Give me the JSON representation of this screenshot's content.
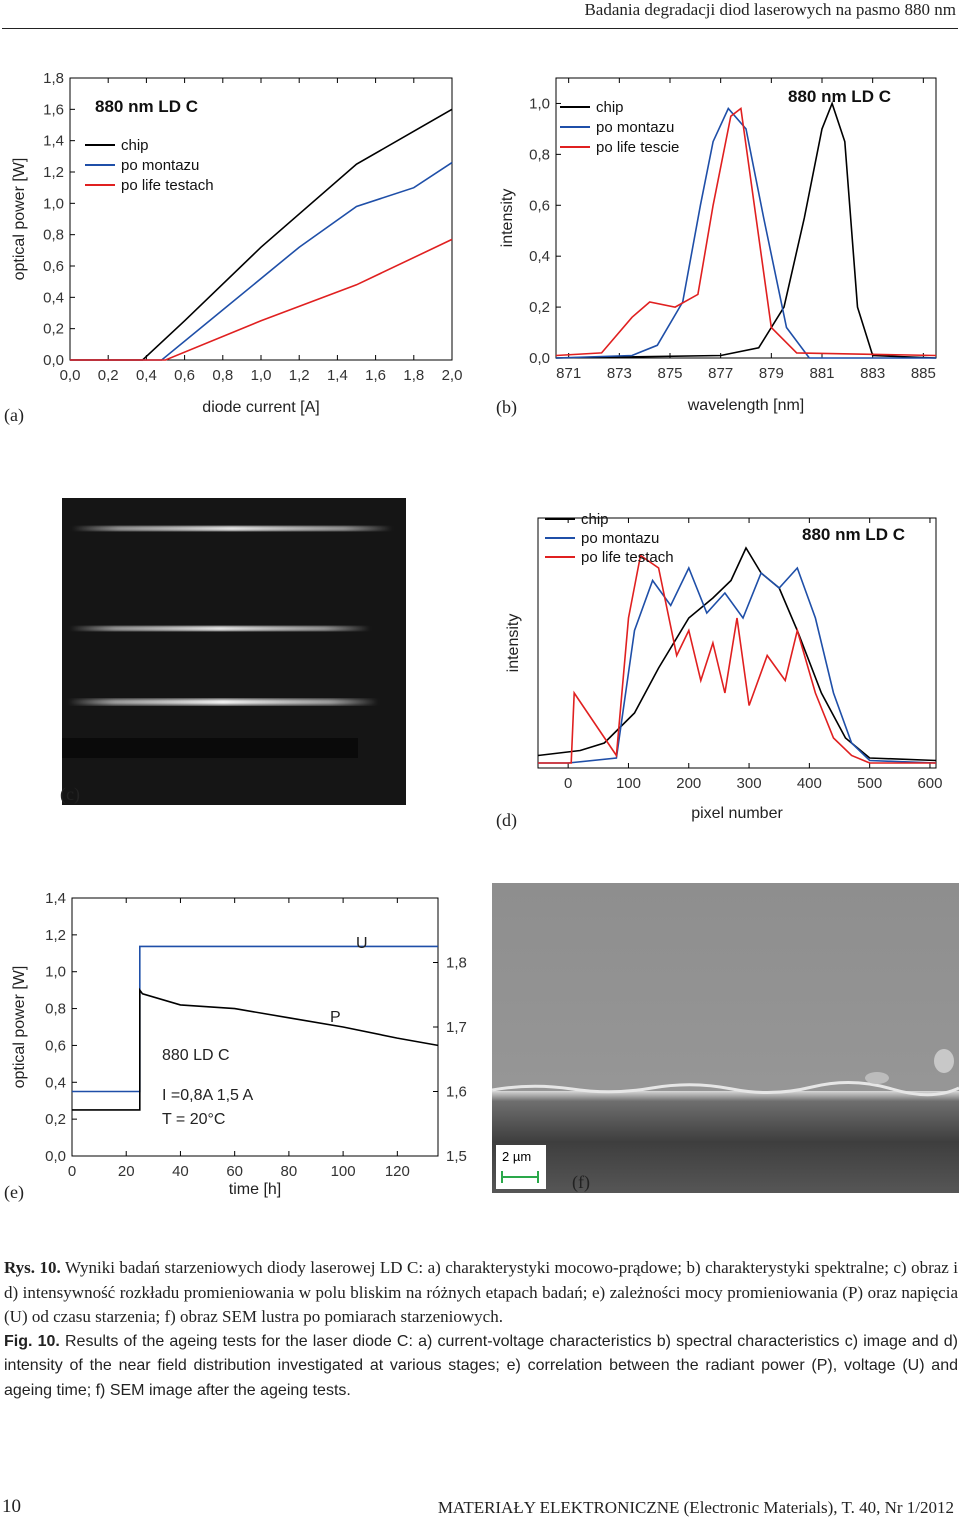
{
  "header": {
    "running_title": "Badania degradacji diod laserowych na pasmo 880 nm"
  },
  "panels": {
    "a": "(a)",
    "b": "(b)",
    "c": "(c)",
    "d": "(d)",
    "e": "(e)",
    "f": "(f)"
  },
  "chart_data": [
    {
      "id": "a",
      "type": "line",
      "title": "880 nm  LD  C",
      "xlabel": "diode current [A]",
      "ylabel": "optical power [W]",
      "xlim": [
        0,
        2.0
      ],
      "ylim": [
        0,
        1.8
      ],
      "xticks": [
        "0,0",
        "0,2",
        "0,4",
        "0,6",
        "0,8",
        "1,0",
        "1,2",
        "1,4",
        "1,6",
        "1,8",
        "2,0"
      ],
      "yticks": [
        "0,0",
        "0,2",
        "0,4",
        "0,6",
        "0,8",
        "1,0",
        "1,2",
        "1,4",
        "1,6",
        "1,8"
      ],
      "legend_position": "top-left",
      "series": [
        {
          "name": "chip",
          "color": "#000000",
          "x": [
            0.0,
            0.38,
            0.6,
            1.0,
            1.5,
            2.0
          ],
          "y": [
            0.0,
            0.0,
            0.25,
            0.72,
            1.25,
            1.6
          ]
        },
        {
          "name": "po montazu",
          "color": "#1f4fa8",
          "x": [
            0.0,
            0.48,
            0.8,
            1.2,
            1.5,
            1.8,
            2.0
          ],
          "y": [
            0.0,
            0.0,
            0.32,
            0.72,
            0.98,
            1.1,
            1.26
          ]
        },
        {
          "name": "po life testach",
          "color": "#e02020",
          "x": [
            0.0,
            0.5,
            1.0,
            1.5,
            2.0
          ],
          "y": [
            0.0,
            0.0,
            0.25,
            0.48,
            0.77
          ]
        }
      ]
    },
    {
      "id": "b",
      "type": "line",
      "title": "880 nm  LD  C",
      "xlabel": "wavelength [nm]",
      "ylabel": "intensity",
      "xlim": [
        870.5,
        885.5
      ],
      "ylim": [
        0,
        1.1
      ],
      "xticks": [
        "871",
        "873",
        "875",
        "877",
        "879",
        "881",
        "883",
        "885"
      ],
      "yticks": [
        "0,0",
        "0,2",
        "0,4",
        "0,6",
        "0,8",
        "1,0"
      ],
      "legend_position": "top-left",
      "series": [
        {
          "name": "chip",
          "color": "#000000",
          "x": [
            870.5,
            877,
            878.5,
            879.5,
            880.3,
            881,
            881.4,
            881.9,
            882.4,
            883,
            885.5
          ],
          "y": [
            0,
            0.01,
            0.04,
            0.2,
            0.55,
            0.9,
            1.0,
            0.85,
            0.2,
            0.01,
            0
          ]
        },
        {
          "name": "po montazu",
          "color": "#1f4fa8",
          "x": [
            870.5,
            873.5,
            874.5,
            875.5,
            876.2,
            876.7,
            877.3,
            878,
            878.7,
            879.6,
            880.5,
            885.5
          ],
          "y": [
            0,
            0.01,
            0.05,
            0.22,
            0.6,
            0.85,
            0.98,
            0.9,
            0.55,
            0.12,
            0,
            0
          ]
        },
        {
          "name": "po life tescie",
          "color": "#e02020",
          "x": [
            870.5,
            872.3,
            873.5,
            874.2,
            875.2,
            876.1,
            876.7,
            877.4,
            877.8,
            878.4,
            879,
            880,
            885.5
          ],
          "y": [
            0.01,
            0.02,
            0.16,
            0.22,
            0.2,
            0.25,
            0.6,
            0.95,
            0.98,
            0.55,
            0.12,
            0.02,
            0.01
          ]
        }
      ]
    },
    {
      "id": "d",
      "type": "line",
      "title": "880 nm  LD  C",
      "xlabel": "pixel number",
      "ylabel": "intensity",
      "xlim": [
        -50,
        610
      ],
      "ylim": [
        0,
        1.0
      ],
      "xticks": [
        "0",
        "100",
        "200",
        "300",
        "400",
        "500",
        "600"
      ],
      "legend_position": "top-left",
      "series": [
        {
          "name": "chip",
          "color": "#000000",
          "x": [
            -50,
            20,
            60,
            110,
            150,
            200,
            240,
            270,
            295,
            320,
            350,
            380,
            420,
            460,
            500,
            610
          ],
          "y": [
            0.05,
            0.07,
            0.1,
            0.22,
            0.4,
            0.6,
            0.68,
            0.75,
            0.88,
            0.78,
            0.72,
            0.55,
            0.3,
            0.12,
            0.04,
            0.03
          ]
        },
        {
          "name": "po montazu",
          "color": "#1f4fa8",
          "x": [
            -50,
            0,
            80,
            110,
            140,
            170,
            200,
            230,
            260,
            290,
            320,
            350,
            380,
            410,
            440,
            470,
            500,
            610
          ],
          "y": [
            0.02,
            0.02,
            0.04,
            0.55,
            0.75,
            0.65,
            0.8,
            0.62,
            0.7,
            0.6,
            0.78,
            0.72,
            0.8,
            0.6,
            0.3,
            0.1,
            0.03,
            0.02
          ]
        },
        {
          "name": "po life testach",
          "color": "#e02020",
          "x": [
            -50,
            5,
            10,
            80,
            100,
            120,
            150,
            180,
            200,
            220,
            240,
            260,
            280,
            300,
            330,
            360,
            380,
            410,
            440,
            470,
            500,
            610
          ],
          "y": [
            0.02,
            0.02,
            0.3,
            0.05,
            0.6,
            0.85,
            0.8,
            0.45,
            0.55,
            0.35,
            0.5,
            0.3,
            0.6,
            0.25,
            0.45,
            0.35,
            0.55,
            0.3,
            0.12,
            0.05,
            0.02,
            0.02
          ]
        }
      ]
    },
    {
      "id": "e",
      "type": "line",
      "xlabel": "time [h]",
      "ylabel": "optical power [W]",
      "xlim": [
        0,
        135
      ],
      "ylim": [
        0,
        1.4
      ],
      "y2lim": [
        1.5,
        1.9
      ],
      "xticks": [
        "0",
        "20",
        "40",
        "60",
        "80",
        "100",
        "120"
      ],
      "yticks": [
        "0,0",
        "0,2",
        "0,4",
        "0,6",
        "0,8",
        "1,0",
        "1,2",
        "1,4"
      ],
      "y2ticks": [
        "1,5",
        "1,6",
        "1,7",
        "1,8"
      ],
      "annotations": [
        "880 LD  C",
        "I =0,8A   1,5 A",
        "T = 20°C",
        "U",
        "P"
      ],
      "series": [
        {
          "name": "U",
          "color": "#1f4fa8",
          "axis": "right",
          "x": [
            0,
            25,
            25,
            135
          ],
          "y": [
            1.6,
            1.6,
            1.825,
            1.825
          ]
        },
        {
          "name": "P",
          "color": "#000000",
          "axis": "left",
          "x": [
            0,
            25,
            25,
            26,
            40,
            60,
            80,
            100,
            120,
            135
          ],
          "y": [
            0.25,
            0.25,
            0.9,
            0.88,
            0.82,
            0.8,
            0.75,
            0.7,
            0.64,
            0.6
          ]
        }
      ]
    }
  ],
  "sem": {
    "scale_label": "2 µm"
  },
  "caption": {
    "pl_label": "Rys. 10.",
    "pl_text": " Wyniki badań starzeniowych diody laserowej LD C: a) charakterystyki mocowo-prądowe; b) charakterystyki spektralne; c) obraz i d) intensywność rozkładu promieniowania w polu bliskim na różnych etapach badań; e) zależności mocy promieniowania (P) oraz napięcia (U) od czasu starzenia; f) obraz SEM lustra po pomiarach starzeniowych.",
    "en_label": "Fig. 10.",
    "en_text": " Results of the ageing tests for the laser diode C: a) current-voltage characteristics b) spectral characteristics c) image and d) intensity of the near field distribution investigated at various stages; e) correlation between the radiant power (P), voltage (U) and ageing time; f) SEM image after the ageing tests."
  },
  "footer": {
    "page_number": "10",
    "journal": "MATERIAŁY ELEKTRONICZNE (Electronic Materials), T. 40, Nr 1/2012"
  }
}
